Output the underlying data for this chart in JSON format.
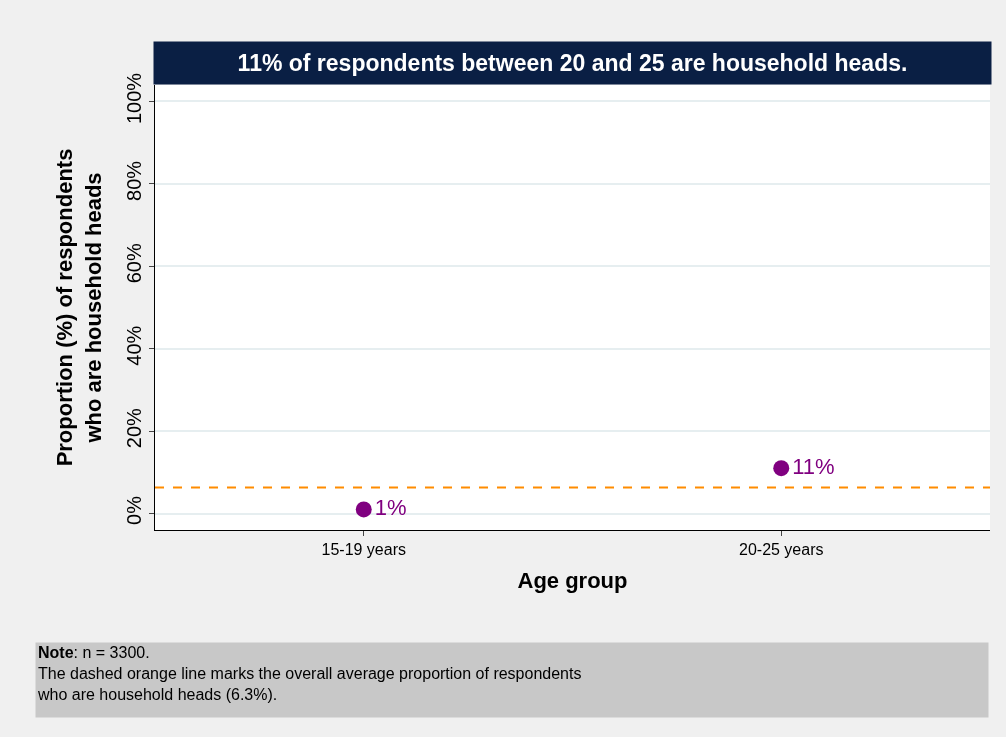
{
  "chart_data": {
    "type": "scatter",
    "title": "11% of respondents between 20 and 25 are household heads.",
    "xlabel": "Age group",
    "ylabel": "Proportion (%) of respondents\nwho are household heads",
    "categories": [
      "15-19 years",
      "20-25 years"
    ],
    "series": [
      {
        "color": "#800080",
        "values": [
          1,
          11
        ],
        "value_labels": [
          "1%",
          "11%"
        ]
      }
    ],
    "ylim": [
      -4,
      104
    ],
    "yticks": [
      {
        "value": 0,
        "label": "0%"
      },
      {
        "value": 20,
        "label": "20%"
      },
      {
        "value": 40,
        "label": "40%"
      },
      {
        "value": 60,
        "label": "60%"
      },
      {
        "value": 80,
        "label": "80%"
      },
      {
        "value": 100,
        "label": "100%"
      }
    ],
    "ref_lines": [
      {
        "axis": "y",
        "value": 6.3,
        "color": "#ff8c00",
        "line_style": "dashed"
      }
    ],
    "grid": "y",
    "legend": false,
    "marker": "circle",
    "annotations": [
      "Note: n = 3300.\nThe dashed orange line marks the overall average proportion of respondents\nwho are household heads (6.3%)."
    ]
  }
}
